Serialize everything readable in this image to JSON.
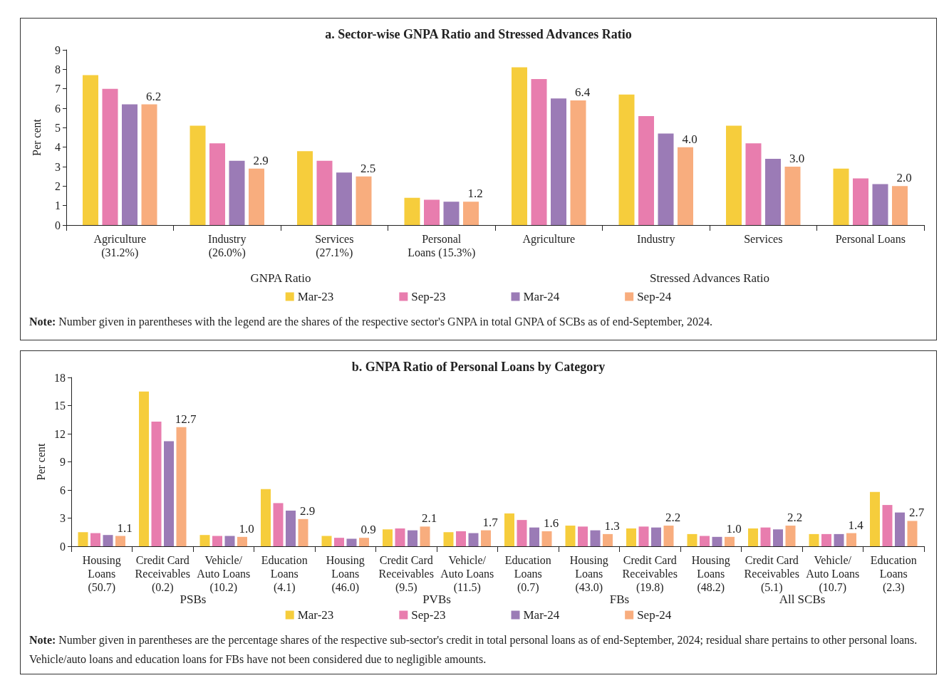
{
  "chart_data": [
    {
      "type": "bar",
      "title": "a. Sector-wise GNPA Ratio and Stressed Advances Ratio",
      "ylabel": "Per cent",
      "categories": [
        "Agriculture\n(31.2%)",
        "Industry\n(26.0%)",
        "Services\n(27.1%)",
        "Personal\nLoans (15.3%)",
        "Agriculture",
        "Industry",
        "Services",
        "Personal Loans"
      ],
      "series": [
        {
          "name": "Mar-23",
          "color": "#f6cd3c",
          "values": [
            7.7,
            5.1,
            3.8,
            1.4,
            8.1,
            6.7,
            5.1,
            2.9
          ]
        },
        {
          "name": "Sep-23",
          "color": "#e87dae",
          "values": [
            7.0,
            4.2,
            3.3,
            1.3,
            7.5,
            5.6,
            4.2,
            2.4
          ]
        },
        {
          "name": "Mar-24",
          "color": "#9b7bb6",
          "values": [
            6.2,
            3.3,
            2.7,
            1.2,
            6.5,
            4.7,
            3.4,
            2.1
          ]
        },
        {
          "name": "Sep-24",
          "color": "#f8ad7e",
          "values": [
            6.2,
            2.9,
            2.5,
            1.2,
            6.4,
            4.0,
            3.0,
            2.0
          ],
          "value_labels": [
            "6.2",
            "2.9",
            "2.5",
            "1.2",
            "6.4",
            "4.0",
            "3.0",
            "2.0"
          ]
        }
      ],
      "ylim": [
        0,
        9
      ],
      "yticks": [
        0,
        1,
        2,
        3,
        4,
        5,
        6,
        7,
        8,
        9
      ],
      "grid": false,
      "legend": "bottom",
      "annotations": [
        "GNPA Ratio",
        "Stressed Advances Ratio",
        "Note: Number given in parentheses with the legend are the shares of the respective sector's GNPA in total GNPA of SCBs as of end-September, 2024."
      ]
    },
    {
      "type": "bar",
      "title": "b. GNPA Ratio of Personal Loans by Category",
      "ylabel": "Per cent",
      "categories": [
        "Housing\nLoans\n(50.7)",
        "Credit Card\nReceivables\n(0.2)",
        "Vehicle/\nAuto Loans\n(10.2)",
        "Education\nLoans\n(4.1)",
        "Housing\nLoans\n(46.0)",
        "Credit Card\nReceivables\n(9.5)",
        "Vehicle/\nAuto Loans\n(11.5)",
        "Education\nLoans\n(0.7)",
        "Housing\nLoans\n(43.0)",
        "Credit Card\nReceivables\n(19.8)",
        "Housing\nLoans\n(48.2)",
        "Credit Card\nReceivables\n(5.1)",
        "Vehicle/\nAuto Loans\n(10.7)",
        "Education\nLoans\n(2.3)"
      ],
      "series": [
        {
          "name": "Mar-23",
          "color": "#f6cd3c",
          "values": [
            1.5,
            16.5,
            1.2,
            6.1,
            1.1,
            1.8,
            1.5,
            3.5,
            2.2,
            1.9,
            1.3,
            1.9,
            1.3,
            5.8
          ]
        },
        {
          "name": "Sep-23",
          "color": "#e87dae",
          "values": [
            1.4,
            13.3,
            1.1,
            4.6,
            0.9,
            1.9,
            1.6,
            2.8,
            2.1,
            2.1,
            1.1,
            2.0,
            1.3,
            4.4
          ]
        },
        {
          "name": "Mar-24",
          "color": "#9b7bb6",
          "values": [
            1.2,
            11.2,
            1.1,
            3.8,
            0.8,
            1.7,
            1.4,
            2.0,
            1.7,
            2.0,
            1.0,
            1.8,
            1.3,
            3.6
          ]
        },
        {
          "name": "Sep-24",
          "color": "#f8ad7e",
          "values": [
            1.1,
            12.7,
            1.0,
            2.9,
            0.9,
            2.1,
            1.7,
            1.6,
            1.3,
            2.2,
            1.0,
            2.2,
            1.4,
            2.7
          ],
          "value_labels": [
            "1.1",
            "12.7",
            "1.0",
            "2.9",
            "0.9",
            "2.1",
            "1.7",
            "1.6",
            "1.3",
            "2.2",
            "1.0",
            "2.2",
            "1.4",
            "2.7"
          ]
        }
      ],
      "ylim": [
        0,
        18
      ],
      "yticks": [
        0,
        3,
        6,
        9,
        12,
        15,
        18
      ],
      "grid": false,
      "legend": "bottom",
      "annotations": [
        "PSBs",
        "PVBs",
        "FBs",
        "All SCBs",
        "Note: Number given in parentheses are the percentage shares of the respective sub-sector's credit in total personal loans as of end-September, 2024; residual share pertains to other personal loans. Vehicle/auto loans and education loans for FBs have not been considered due to negligible amounts."
      ]
    }
  ]
}
